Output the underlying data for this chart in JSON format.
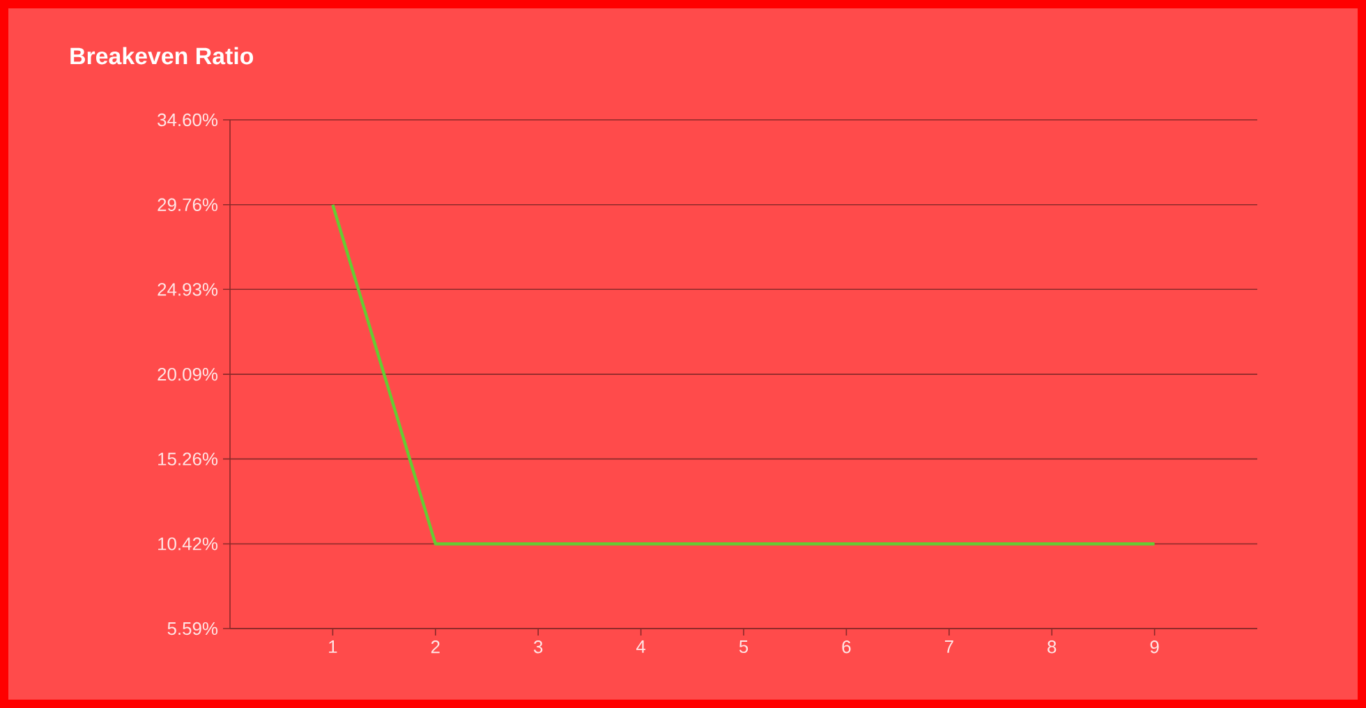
{
  "chart_data": {
    "type": "line",
    "title": "Breakeven Ratio",
    "x": [
      1,
      2,
      3,
      4,
      5,
      6,
      7,
      8,
      9
    ],
    "series": [
      {
        "color": "#66cc33",
        "values": [
          29.76,
          10.42,
          10.42,
          10.42,
          10.42,
          10.42,
          10.42,
          10.42,
          10.42
        ]
      }
    ],
    "xlim": [
      0,
      10
    ],
    "xticks": [
      1,
      2,
      3,
      4,
      5,
      6,
      7,
      8,
      9
    ],
    "ylim": [
      5.59,
      34.6
    ],
    "yticks": [
      {
        "value": 5.59,
        "label": "5.59%"
      },
      {
        "value": 10.42,
        "label": "10.42%"
      },
      {
        "value": 15.26,
        "label": "15.26%"
      },
      {
        "value": 20.09,
        "label": "20.09%"
      },
      {
        "value": 24.93,
        "label": "24.93%"
      },
      {
        "value": 29.76,
        "label": "29.76%"
      },
      {
        "value": 34.6,
        "label": "34.60%"
      }
    ],
    "grid": "y",
    "marker": "none",
    "line_style": "solid"
  }
}
